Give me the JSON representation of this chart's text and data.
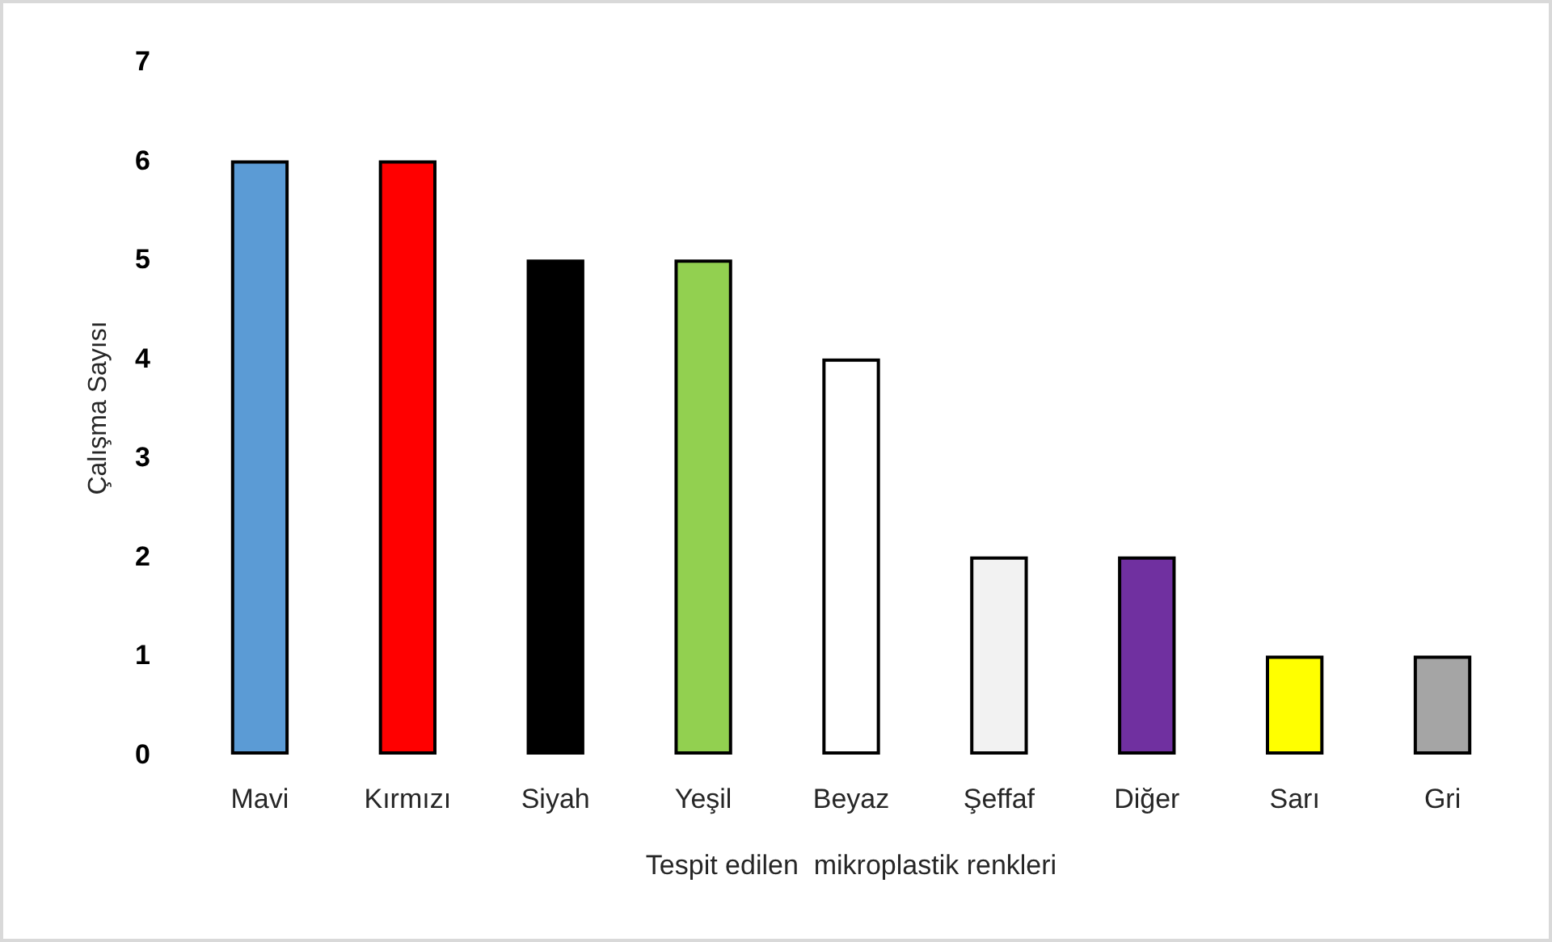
{
  "chart_data": {
    "type": "bar",
    "xlabel": "Tespit edilen  mikroplastik renkleri",
    "ylabel": "Çalışma Sayısı",
    "categories": [
      "Mavi",
      "Kırmızı",
      "Siyah",
      "Yeşil",
      "Beyaz",
      "Şeffaf",
      "Diğer",
      "Sarı",
      "Gri"
    ],
    "values": [
      6,
      6,
      5,
      5,
      4,
      2,
      2,
      1,
      1
    ],
    "colors": [
      "#5b9bd5",
      "#ff0000",
      "#000000",
      "#92d050",
      "#ffffff",
      "#f2f2f2",
      "#7030a0",
      "#ffff00",
      "#a5a5a5"
    ],
    "ylim": [
      0,
      7
    ],
    "yticks": [
      0,
      1,
      2,
      3,
      4,
      5,
      6,
      7
    ],
    "grid": false
  }
}
